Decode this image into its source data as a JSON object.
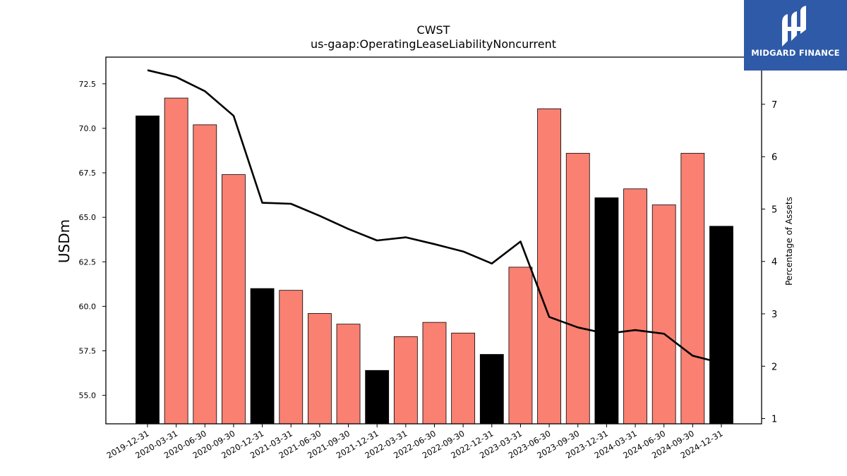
{
  "chart_data": {
    "type": "bar",
    "title": "CWST",
    "subtitle": "us-gaap:OperatingLeaseLiabilityNoncurrent",
    "ylabel": "USDm",
    "y2label": "Percentage of Assets",
    "ylim": [
      53.4,
      74
    ],
    "y2lim": [
      0.9,
      7.9
    ],
    "yticks": [
      "55.0",
      "57.5",
      "60.0",
      "62.5",
      "65.0",
      "67.5",
      "70.0",
      "72.5"
    ],
    "y2ticks": [
      "1",
      "2",
      "3",
      "4",
      "5",
      "6",
      "7"
    ],
    "categories": [
      "2019-12-31",
      "2020-03-31",
      "2020-06-30",
      "2020-09-30",
      "2020-12-31",
      "2021-03-31",
      "2021-06-30",
      "2021-09-30",
      "2021-12-31",
      "2022-03-31",
      "2022-06-30",
      "2022-09-30",
      "2022-12-31",
      "2023-03-31",
      "2023-06-30",
      "2023-09-30",
      "2023-12-31",
      "2024-03-31",
      "2024-06-30",
      "2024-09-30",
      "2024-12-31"
    ],
    "series": [
      {
        "type": "bar",
        "values": [
          70.7,
          71.7,
          70.2,
          67.4,
          61.0,
          60.9,
          59.6,
          59.0,
          56.4,
          58.3,
          59.1,
          58.5,
          57.3,
          62.2,
          71.1,
          68.6,
          66.1,
          66.6,
          65.7,
          68.6,
          64.5
        ],
        "colors": [
          "#000000",
          "#fa8072",
          "#fa8072",
          "#fa8072",
          "#000000",
          "#fa8072",
          "#fa8072",
          "#fa8072",
          "#000000",
          "#fa8072",
          "#fa8072",
          "#fa8072",
          "#000000",
          "#fa8072",
          "#fa8072",
          "#fa8072",
          "#000000",
          "#fa8072",
          "#fa8072",
          "#fa8072",
          "#000000"
        ]
      },
      {
        "type": "line",
        "axis": "right",
        "color": "#000000",
        "values": [
          7.65,
          7.52,
          7.25,
          6.78,
          5.12,
          5.1,
          4.87,
          4.62,
          4.4,
          4.46,
          4.33,
          4.19,
          3.96,
          4.38,
          2.94,
          2.74,
          2.62,
          2.69,
          2.62,
          2.2,
          2.06
        ]
      }
    ]
  },
  "brand": {
    "name": "MIDGARD FINANCE",
    "color": "#2e5aa8"
  }
}
